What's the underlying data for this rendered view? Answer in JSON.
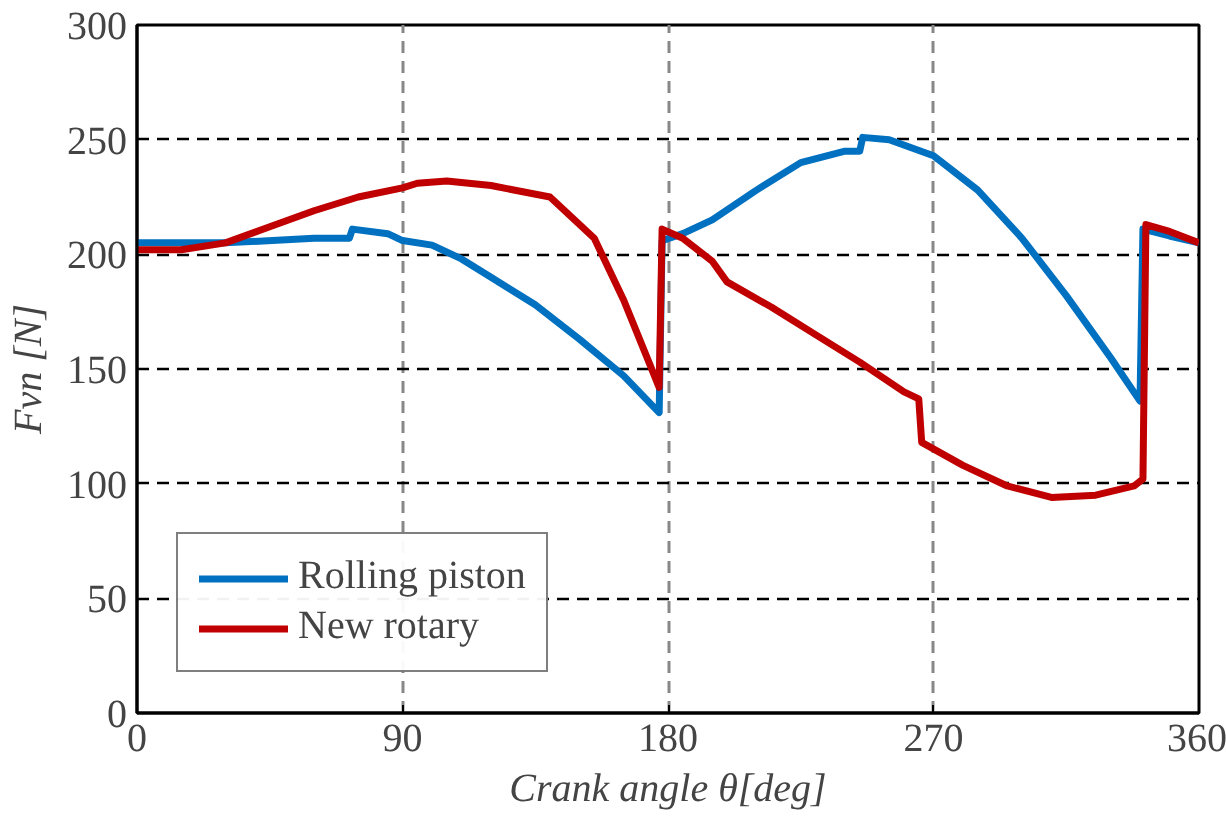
{
  "chart_data": {
    "type": "line",
    "xlabel": "Crank angle θ[deg]",
    "ylabel": "Fvn [N]",
    "xlim": [
      0,
      360
    ],
    "xticks": [
      0,
      90,
      180,
      270,
      360
    ],
    "ylim": [
      0,
      300
    ],
    "yticks": [
      0,
      50,
      100,
      150,
      200,
      250,
      300
    ],
    "grid": true,
    "legend": "bottom left",
    "line_style": "solid",
    "series": [
      {
        "name": "Rolling piston",
        "color": "#0070c0",
        "x": [
          0,
          30,
          60,
          72,
          73,
          85,
          90,
          100,
          110,
          120,
          135,
          150,
          165,
          177,
          178,
          185,
          195,
          210,
          225,
          240,
          245,
          246,
          255,
          270,
          285,
          300,
          315,
          330,
          340,
          341,
          350,
          360
        ],
        "values": [
          205,
          205,
          207,
          207,
          211,
          209,
          206,
          204,
          198,
          190,
          178,
          163,
          147,
          131,
          206,
          209,
          215,
          228,
          240,
          245,
          245,
          251,
          250,
          243,
          228,
          207,
          182,
          155,
          136,
          211,
          208,
          205
        ]
      },
      {
        "name": "New rotary",
        "color": "#c00000",
        "x": [
          0,
          15,
          30,
          45,
          60,
          75,
          90,
          95,
          105,
          120,
          140,
          155,
          165,
          177,
          178,
          185,
          195,
          200,
          215,
          230,
          245,
          260,
          265,
          266,
          280,
          295,
          310,
          325,
          338,
          341,
          342,
          350,
          360
        ],
        "values": [
          202,
          202,
          205,
          212,
          219,
          225,
          229,
          231,
          232,
          230,
          225,
          207,
          180,
          142,
          211,
          207,
          197,
          188,
          177,
          165,
          153,
          140,
          137,
          118,
          108,
          99,
          94,
          95,
          99,
          102,
          213,
          210,
          205
        ]
      }
    ]
  }
}
